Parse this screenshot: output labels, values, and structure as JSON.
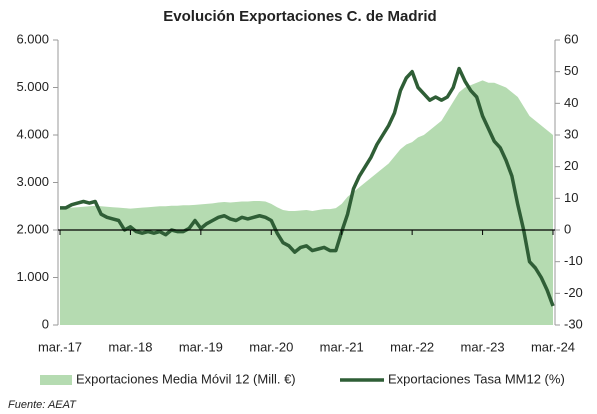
{
  "chart_data": {
    "type": "area-line",
    "title": "Evolución Exportaciones C. de Madrid",
    "categories": [
      "mar.-17",
      null,
      null,
      null,
      null,
      null,
      null,
      null,
      null,
      null,
      null,
      null,
      "mar.-18",
      null,
      null,
      null,
      null,
      null,
      null,
      null,
      null,
      null,
      null,
      null,
      "mar.-19",
      null,
      null,
      null,
      null,
      null,
      null,
      null,
      null,
      null,
      null,
      null,
      "mar.-20",
      null,
      null,
      null,
      null,
      null,
      null,
      null,
      null,
      null,
      null,
      null,
      "mar.-21",
      null,
      null,
      null,
      null,
      null,
      null,
      null,
      null,
      null,
      null,
      null,
      "mar.-22",
      null,
      null,
      null,
      null,
      null,
      null,
      null,
      null,
      null,
      null,
      null,
      "mar.-23",
      null,
      null,
      null,
      null,
      null,
      null,
      null,
      null,
      null,
      null,
      null,
      "mar.-24"
    ],
    "series": [
      {
        "name": "Exportaciones Media Móvil 12 (Mill. €)",
        "color": "#b5dbb1",
        "axis": "y",
        "values": [
          2450,
          2460,
          2470,
          2480,
          2490,
          2500,
          2510,
          2500,
          2490,
          2480,
          2470,
          2460,
          2450,
          2460,
          2470,
          2480,
          2490,
          2500,
          2500,
          2510,
          2510,
          2520,
          2520,
          2530,
          2540,
          2550,
          2560,
          2580,
          2590,
          2580,
          2590,
          2600,
          2600,
          2610,
          2610,
          2600,
          2550,
          2480,
          2420,
          2400,
          2400,
          2410,
          2420,
          2400,
          2420,
          2440,
          2440,
          2460,
          2550,
          2700,
          2800,
          2900,
          3000,
          3100,
          3200,
          3300,
          3400,
          3550,
          3700,
          3800,
          3850,
          3950,
          4000,
          4100,
          4200,
          4300,
          4500,
          4700,
          4900,
          5000,
          5050,
          5100,
          5150,
          5100,
          5100,
          5050,
          5000,
          4900,
          4800,
          4600,
          4400,
          4300,
          4200,
          4100,
          4000
        ]
      },
      {
        "name": "Exportaciones Tasa MM12 (%)",
        "color": "#2f5e36",
        "axis": "y2",
        "values": [
          7,
          7,
          8,
          8.5,
          9,
          8.5,
          9,
          5,
          4,
          3.5,
          3,
          0,
          1,
          -0.5,
          -1,
          -0.5,
          -1,
          -0.5,
          -1.5,
          0,
          -0.5,
          -0.5,
          0.5,
          3,
          0.5,
          2,
          3,
          4,
          4.5,
          3.5,
          3,
          4,
          3.5,
          4,
          4.5,
          4,
          3,
          -1,
          -4,
          -5,
          -7,
          -5.5,
          -5,
          -6.5,
          -6,
          -5.5,
          -6.5,
          -6.5,
          -0.5,
          5,
          13,
          17,
          20,
          23,
          27,
          30,
          33,
          37,
          44,
          48,
          50,
          45,
          43,
          41,
          42,
          41,
          42,
          45,
          51,
          47,
          44,
          42,
          36,
          32,
          28,
          26,
          22,
          17,
          8,
          0,
          -10,
          -12,
          -15,
          -19,
          -24
        ]
      }
    ],
    "ylim": [
      0,
      6000
    ],
    "yticks": [
      0,
      {
        "value": 1000,
        "label": "1.000"
      },
      {
        "value": 2000,
        "label": "2.000"
      },
      {
        "value": 3000,
        "label": "3.000"
      },
      {
        "value": 4000,
        "label": "4.000"
      },
      {
        "value": 5000,
        "label": "5.000"
      },
      {
        "value": 6000,
        "label": "6.000"
      }
    ],
    "y2lim": [
      -30,
      60
    ],
    "y2ticks": [
      -30,
      -20,
      -10,
      0,
      10,
      20,
      30,
      40,
      50,
      60
    ],
    "legend": "bottom",
    "source": "Fuente: AEAT"
  }
}
